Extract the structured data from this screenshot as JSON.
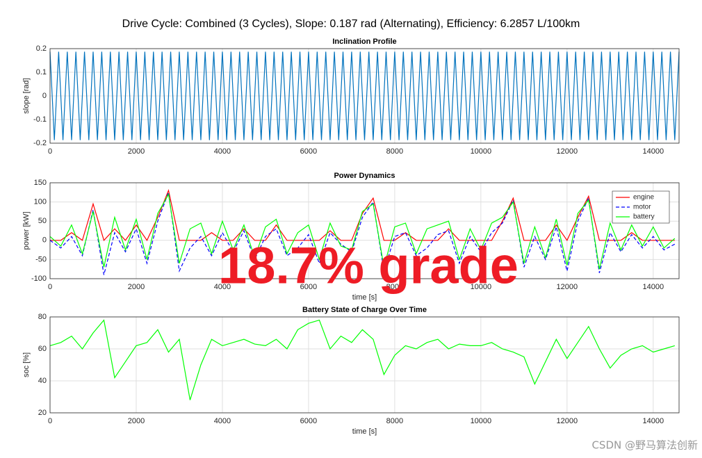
{
  "title": "Drive Cycle: Combined (3 Cycles), Slope: 0.187 rad (Alternating), Efficiency: 6.2857 L/100km",
  "overlay_text": "18.7% grade",
  "watermark": "CSDN @野马算法创新",
  "chart_data": [
    {
      "type": "line",
      "title": "Inclination Profile",
      "ylabel": "slope [rad]",
      "x": [
        0,
        100,
        200,
        300,
        400,
        500,
        600,
        700,
        800,
        900,
        1000,
        1100,
        1200,
        1300,
        1400,
        1500,
        1600,
        1700,
        1800,
        1900,
        2000,
        2100,
        2200,
        2300,
        2400,
        2500,
        2600,
        2700,
        2800,
        2900,
        3000,
        3100,
        3200,
        3300,
        3400,
        3500,
        3600,
        3700,
        3800,
        3900,
        4000,
        4100,
        4200,
        4300,
        4400,
        4500,
        4600,
        4700,
        4800,
        4900,
        5000,
        5100,
        5200,
        5300,
        5400,
        5500,
        5600,
        5700,
        5800,
        5900,
        6000,
        6100,
        6200,
        6300,
        6400,
        6500,
        6600,
        6700,
        6800,
        6900,
        7000,
        7100,
        7200,
        7300,
        7400,
        7500,
        7600,
        7700,
        7800,
        7900,
        8000,
        8100,
        8200,
        8300,
        8400,
        8500,
        8600,
        8700,
        8800,
        8900,
        9000,
        9100,
        9200,
        9300,
        9400,
        9500,
        9600,
        9700,
        9800,
        9900,
        10000,
        10100,
        10200,
        10300,
        10400,
        10500,
        10600,
        10700,
        10800,
        10900,
        11000,
        11100,
        11200,
        11300,
        11400,
        11500,
        11600,
        11700,
        11800,
        11900,
        12000,
        12100,
        12200,
        12300,
        12400,
        12500,
        12600,
        12700,
        12800,
        12900,
        13000,
        13100,
        13200,
        13300,
        13400,
        13500,
        13600,
        13700,
        13800,
        13900,
        14000,
        14100,
        14200,
        14300,
        14400,
        14500,
        14600
      ],
      "series": [
        {
          "name": "slope",
          "color": "#0072bd",
          "values": [
            0.187,
            -0.187,
            0.187,
            -0.187,
            0.187,
            -0.187,
            0.187,
            -0.187,
            0.187,
            -0.187,
            0.187,
            -0.187,
            0.187,
            -0.187,
            0.187,
            -0.187,
            0.187,
            -0.187,
            0.187,
            -0.187,
            0.187,
            -0.187,
            0.187,
            -0.187,
            0.187,
            -0.187,
            0.187,
            -0.187,
            0.187,
            -0.187,
            0.187,
            -0.187,
            0.187,
            -0.187,
            0.187,
            -0.187,
            0.187,
            -0.187,
            0.187,
            -0.187,
            0.187,
            -0.187,
            0.187,
            -0.187,
            0.187,
            -0.187,
            0.187,
            -0.187,
            0.187,
            -0.187,
            0.187,
            -0.187,
            0.187,
            -0.187,
            0.187,
            -0.187,
            0.187,
            -0.187,
            0.187,
            -0.187,
            0.187,
            -0.187,
            0.187,
            -0.187,
            0.187,
            -0.187,
            0.187,
            -0.187,
            0.187,
            -0.187,
            0.187,
            -0.187,
            0.187,
            -0.187,
            0.187,
            -0.187,
            0.187,
            -0.187,
            0.187,
            -0.187,
            0.187,
            -0.187,
            0.187,
            -0.187,
            0.187,
            -0.187,
            0.187,
            -0.187,
            0.187,
            -0.187,
            0.187,
            -0.187,
            0.187,
            -0.187,
            0.187,
            -0.187,
            0.187,
            -0.187,
            0.187,
            -0.187,
            0.187,
            -0.187,
            0.187,
            -0.187,
            0.187,
            -0.187,
            0.187,
            -0.187,
            0.187,
            -0.187,
            0.187,
            -0.187,
            0.187,
            -0.187,
            0.187,
            -0.187,
            0.187,
            -0.187,
            0.187,
            -0.187,
            0.187,
            -0.187,
            0.187,
            -0.187,
            0.187,
            -0.187,
            0.187,
            -0.187,
            0.187,
            -0.187,
            0.187,
            -0.187,
            0.187,
            -0.187,
            0.187,
            -0.187,
            0.187,
            -0.187,
            0.187,
            -0.187,
            0.187,
            -0.187,
            0.187,
            -0.187,
            0.187,
            -0.187,
            0.187
          ]
        }
      ],
      "xlim": [
        0,
        14600
      ],
      "ylim": [
        -0.2,
        0.2
      ],
      "xticks": [
        0,
        2000,
        4000,
        6000,
        8000,
        10000,
        12000,
        14000
      ],
      "yticks": [
        -0.2,
        -0.1,
        0,
        0.1,
        0.2
      ],
      "grid": true
    },
    {
      "type": "line",
      "title": "Power Dynamics",
      "xlabel": "time [s]",
      "ylabel": "power [kW]",
      "x": [
        0,
        250,
        500,
        750,
        1000,
        1250,
        1500,
        1750,
        2000,
        2250,
        2500,
        2750,
        3000,
        3250,
        3500,
        3750,
        4000,
        4250,
        4500,
        4750,
        5000,
        5250,
        5500,
        5750,
        6000,
        6250,
        6500,
        6750,
        7000,
        7250,
        7500,
        7750,
        8000,
        8250,
        8500,
        8750,
        9000,
        9250,
        9500,
        9750,
        10000,
        10250,
        10500,
        10750,
        11000,
        11250,
        11500,
        11750,
        12000,
        12250,
        12500,
        12750,
        13000,
        13250,
        13500,
        13750,
        14000,
        14250,
        14500
      ],
      "series": [
        {
          "name": "engine",
          "color": "#ff0000",
          "values": [
            0,
            0,
            20,
            0,
            95,
            0,
            30,
            0,
            40,
            0,
            60,
            130,
            0,
            0,
            0,
            20,
            0,
            0,
            30,
            0,
            0,
            40,
            0,
            0,
            0,
            0,
            25,
            0,
            0,
            70,
            110,
            0,
            0,
            20,
            0,
            0,
            0,
            30,
            0,
            0,
            0,
            0,
            50,
            110,
            0,
            0,
            0,
            40,
            0,
            60,
            115,
            0,
            0,
            0,
            20,
            0,
            0,
            0,
            0
          ]
        },
        {
          "name": "motor",
          "color": "#0000ff",
          "linestyle": "--",
          "values": [
            0,
            -20,
            10,
            -40,
            80,
            -90,
            20,
            -30,
            30,
            -60,
            50,
            125,
            -80,
            -20,
            10,
            -40,
            20,
            -30,
            25,
            -50,
            10,
            30,
            -40,
            -20,
            15,
            -60,
            20,
            -10,
            -30,
            60,
            100,
            -80,
            10,
            20,
            -40,
            -20,
            15,
            25,
            -60,
            10,
            -30,
            20,
            45,
            105,
            -70,
            10,
            -50,
            35,
            -80,
            50,
            110,
            -85,
            20,
            -30,
            15,
            -20,
            10,
            -25,
            -10
          ]
        },
        {
          "name": "battery",
          "color": "#00ff00",
          "values": [
            10,
            -15,
            40,
            -35,
            75,
            -70,
            60,
            -25,
            55,
            -50,
            70,
            120,
            -60,
            30,
            45,
            -35,
            50,
            -25,
            40,
            -45,
            35,
            55,
            -35,
            20,
            40,
            -50,
            45,
            -15,
            -25,
            75,
            95,
            -70,
            35,
            45,
            -35,
            30,
            40,
            50,
            -50,
            30,
            -25,
            45,
            60,
            100,
            -60,
            35,
            -45,
            55,
            -65,
            70,
            105,
            -75,
            45,
            -25,
            40,
            -15,
            35,
            -20,
            5
          ]
        }
      ],
      "xlim": [
        0,
        14600
      ],
      "ylim": [
        -100,
        150
      ],
      "xticks": [
        0,
        2000,
        4000,
        6000,
        8000,
        10000,
        12000,
        14000
      ],
      "yticks": [
        -100,
        -50,
        0,
        50,
        100,
        150
      ],
      "grid": true,
      "legend": "northeast"
    },
    {
      "type": "line",
      "title": "Battery State of Charge Over Time",
      "xlabel": "time [s]",
      "ylabel": "soc [%]",
      "x": [
        0,
        250,
        500,
        750,
        1000,
        1250,
        1500,
        1750,
        2000,
        2250,
        2500,
        2750,
        3000,
        3250,
        3500,
        3750,
        4000,
        4250,
        4500,
        4750,
        5000,
        5250,
        5500,
        5750,
        6000,
        6250,
        6500,
        6750,
        7000,
        7250,
        7500,
        7750,
        8000,
        8250,
        8500,
        8750,
        9000,
        9250,
        9500,
        9750,
        10000,
        10250,
        10500,
        10750,
        11000,
        11250,
        11500,
        11750,
        12000,
        12250,
        12500,
        12750,
        13000,
        13250,
        13500,
        13750,
        14000,
        14250,
        14500
      ],
      "series": [
        {
          "name": "soc",
          "color": "#00ff00",
          "values": [
            62,
            64,
            68,
            60,
            70,
            78,
            42,
            52,
            62,
            64,
            72,
            58,
            66,
            28,
            50,
            66,
            62,
            64,
            66,
            63,
            62,
            66,
            60,
            72,
            76,
            78,
            60,
            68,
            64,
            72,
            66,
            44,
            56,
            62,
            60,
            64,
            66,
            60,
            63,
            62,
            62,
            64,
            60,
            58,
            55,
            38,
            52,
            66,
            54,
            64,
            74,
            60,
            48,
            56,
            60,
            62,
            58,
            60,
            62
          ]
        }
      ],
      "xlim": [
        0,
        14600
      ],
      "ylim": [
        20,
        80
      ],
      "xticks": [
        0,
        2000,
        4000,
        6000,
        8000,
        10000,
        12000,
        14000
      ],
      "yticks": [
        20,
        40,
        60,
        80
      ],
      "grid": true
    }
  ]
}
